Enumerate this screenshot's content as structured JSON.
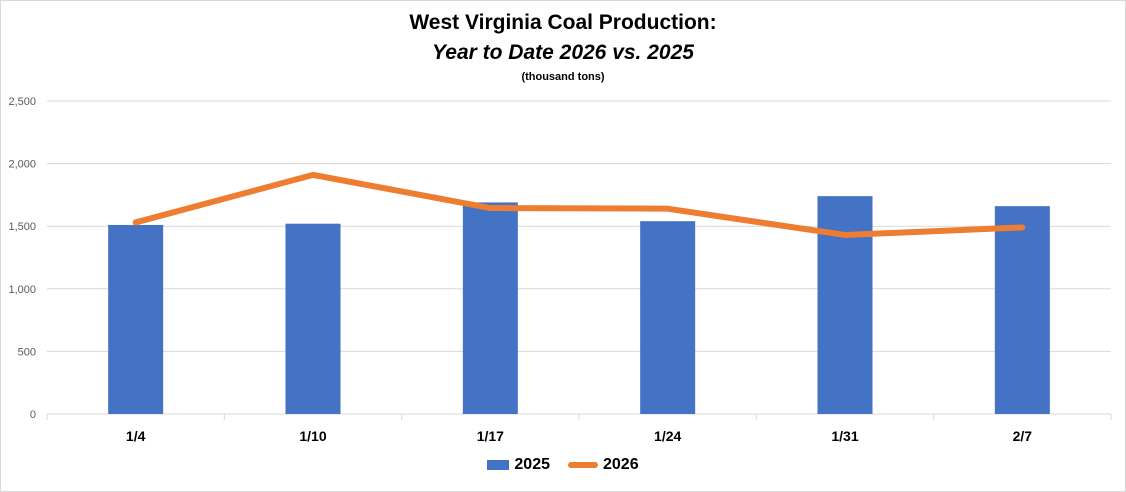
{
  "chart_data": {
    "type": "bar",
    "title": "West Virginia Coal Production:",
    "subtitle": "Year to Date 2026 vs. 2025",
    "units": "(thousand tons)",
    "categories": [
      "1/4",
      "1/10",
      "1/17",
      "1/24",
      "1/31",
      "2/7"
    ],
    "series": [
      {
        "name": "2025",
        "type": "bar",
        "color": "#4472c4",
        "values": [
          1510,
          1520,
          1690,
          1540,
          1740,
          1660
        ]
      },
      {
        "name": "2026",
        "type": "line",
        "color": "#ed7d31",
        "values": [
          1530,
          1910,
          1645,
          1640,
          1430,
          1490
        ]
      }
    ],
    "ylim": [
      0,
      2500
    ],
    "yticks": [
      0,
      500,
      1000,
      1500,
      2000,
      2500
    ],
    "ytick_labels": [
      "0",
      "500",
      "1,000",
      "1,500",
      "2,000",
      "2,500"
    ],
    "grid": true,
    "legend": "bottom-center",
    "xlabel": "",
    "ylabel": ""
  }
}
